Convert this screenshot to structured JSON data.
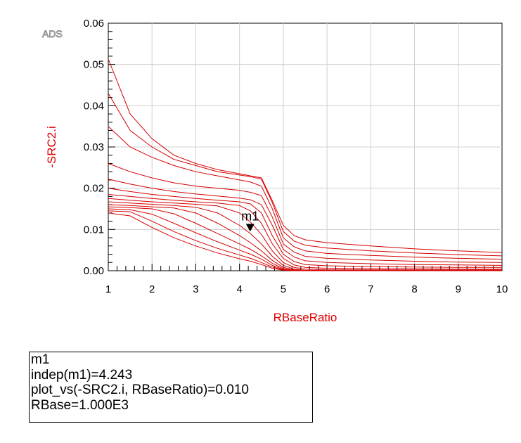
{
  "watermark": "ADS",
  "chart_data": {
    "type": "line",
    "xlabel": "RBaseRatio",
    "ylabel": "-SRC2.i",
    "xlim": [
      1,
      10
    ],
    "ylim": [
      0,
      0.06
    ],
    "x_ticks": [
      "1",
      "2",
      "3",
      "4",
      "5",
      "6",
      "7",
      "8",
      "9",
      "10"
    ],
    "y_ticks": [
      "0.00",
      "0.01",
      "0.02",
      "0.03",
      "0.04",
      "0.05",
      "0.06"
    ],
    "grid": true,
    "line_color": "#d40000",
    "x": [
      1.0,
      1.5,
      2.0,
      2.5,
      3.0,
      3.5,
      4.0,
      4.25,
      4.5,
      4.75,
      5.0,
      5.25,
      5.5,
      6.0,
      7.0,
      8.0,
      9.0,
      10.0
    ],
    "series": [
      {
        "values": [
          0.0513,
          0.038,
          0.032,
          0.028,
          0.026,
          0.0245,
          0.0235,
          0.023,
          0.0225,
          0.017,
          0.011,
          0.0085,
          0.0075,
          0.0068,
          0.006,
          0.0053,
          0.0048,
          0.0044
        ]
      },
      {
        "values": [
          0.043,
          0.034,
          0.03,
          0.027,
          0.0255,
          0.024,
          0.0232,
          0.0228,
          0.0222,
          0.0165,
          0.0095,
          0.0072,
          0.0062,
          0.0055,
          0.0048,
          0.0043,
          0.0039,
          0.0036
        ]
      },
      {
        "values": [
          0.035,
          0.03,
          0.0275,
          0.0255,
          0.024,
          0.023,
          0.022,
          0.0215,
          0.0205,
          0.015,
          0.008,
          0.0058,
          0.0048,
          0.0042,
          0.0037,
          0.0033,
          0.003,
          0.0028
        ]
      },
      {
        "values": [
          0.026,
          0.024,
          0.0225,
          0.0213,
          0.0205,
          0.02,
          0.0195,
          0.019,
          0.0182,
          0.013,
          0.0065,
          0.0045,
          0.0035,
          0.003,
          0.0026,
          0.0023,
          0.0021,
          0.002
        ]
      },
      {
        "values": [
          0.0222,
          0.021,
          0.02,
          0.0192,
          0.0186,
          0.0181,
          0.0176,
          0.0172,
          0.016,
          0.011,
          0.0052,
          0.0033,
          0.0024,
          0.002,
          0.0017,
          0.0015,
          0.0014,
          0.0013
        ]
      },
      {
        "values": [
          0.02,
          0.0192,
          0.0185,
          0.018,
          0.0175,
          0.0171,
          0.0167,
          0.0162,
          0.014,
          0.0085,
          0.004,
          0.0022,
          0.0015,
          0.0012,
          0.001,
          0.0009,
          0.0008,
          0.0008
        ]
      },
      {
        "values": [
          0.0185,
          0.018,
          0.0175,
          0.0171,
          0.0167,
          0.0164,
          0.0158,
          0.0145,
          0.0115,
          0.0065,
          0.003,
          0.0014,
          0.0008,
          0.0006,
          0.0005,
          0.0005,
          0.0004,
          0.0004
        ]
      },
      {
        "values": [
          0.0175,
          0.0171,
          0.0167,
          0.0164,
          0.0161,
          0.0157,
          0.014,
          0.0118,
          0.0088,
          0.0048,
          0.002,
          0.0008,
          0.0004,
          0.0002,
          0.0002,
          0.0002,
          0.0002,
          0.0002
        ]
      },
      {
        "values": [
          0.0167,
          0.0164,
          0.0161,
          0.0158,
          0.0154,
          0.014,
          0.011,
          0.009,
          0.0065,
          0.0035,
          0.0013,
          0.0004,
          0.0001,
          0.0001,
          0.0001,
          0.0001,
          0.0001,
          0.0001
        ]
      },
      {
        "values": [
          0.016,
          0.0158,
          0.0155,
          0.0152,
          0.014,
          0.0115,
          0.0085,
          0.0068,
          0.0048,
          0.0025,
          0.0008,
          0.0002,
          0.0001,
          0.0,
          0.0,
          0.0,
          0.0,
          0.0
        ]
      },
      {
        "values": [
          0.0155,
          0.0153,
          0.015,
          0.0138,
          0.0115,
          0.009,
          0.0065,
          0.0052,
          0.0036,
          0.0018,
          0.0005,
          0.0001,
          0.0,
          0.0,
          0.0,
          0.0,
          0.0,
          0.0
        ]
      },
      {
        "values": [
          0.015,
          0.0148,
          0.0137,
          0.0115,
          0.0092,
          0.007,
          0.005,
          0.004,
          0.0028,
          0.0013,
          0.0003,
          0.0,
          0.0,
          0.0,
          0.0,
          0.0,
          0.0,
          0.0
        ]
      },
      {
        "values": [
          0.0145,
          0.0143,
          0.012,
          0.0095,
          0.0073,
          0.0054,
          0.0038,
          0.003,
          0.002,
          0.0009,
          0.0002,
          0.0,
          0.0,
          0.0,
          0.0,
          0.0,
          0.0,
          0.0
        ]
      },
      {
        "values": [
          0.014,
          0.0133,
          0.0105,
          0.008,
          0.006,
          0.0043,
          0.0029,
          0.0023,
          0.0015,
          0.0006,
          0.0001,
          0.0,
          0.0,
          0.0,
          0.0,
          0.0,
          0.0,
          0.0
        ]
      }
    ],
    "marker": {
      "name": "m1",
      "x": 4.243,
      "y": 0.01
    }
  },
  "marker_readout": {
    "line1": "m1",
    "line2": "indep(m1)=4.243",
    "line3": "plot_vs(-SRC2.i, RBaseRatio)=0.010",
    "line4": "RBase=1.000E3"
  }
}
